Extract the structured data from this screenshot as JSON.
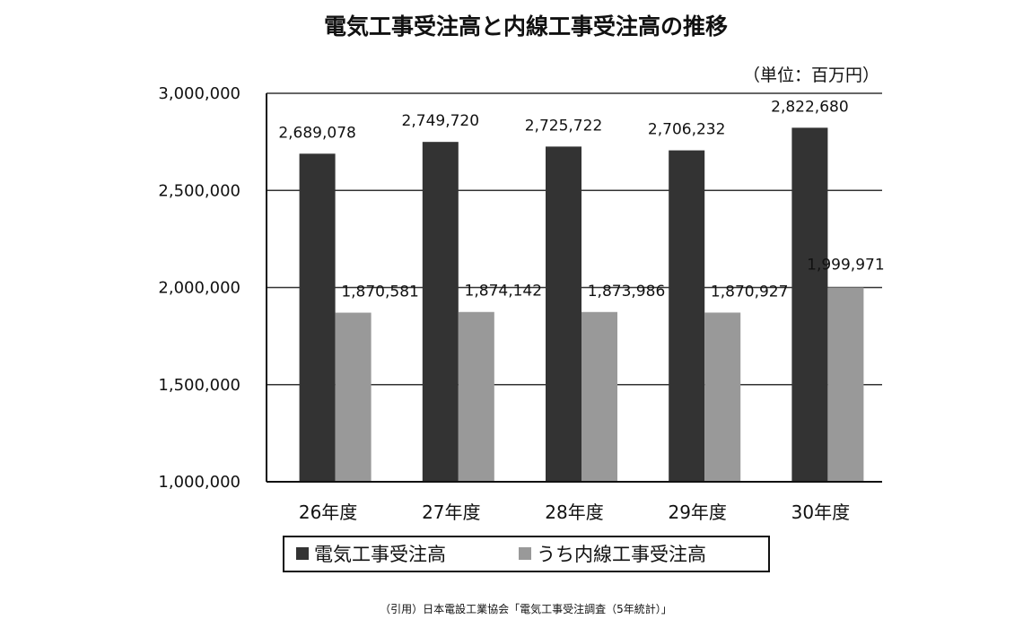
{
  "chart_data": {
    "type": "bar",
    "title": "電気工事受注高と内線工事受注高の推移",
    "unit_label": "（単位：百万円）",
    "categories": [
      "26年度",
      "27年度",
      "28年度",
      "29年度",
      "30年度"
    ],
    "series": [
      {
        "name": "電気工事受注高",
        "color": "#333333",
        "values": [
          2689078,
          2749720,
          2725722,
          2706232,
          2822680
        ],
        "labels": [
          "2,689,078",
          "2,749,720",
          "2,725,722",
          "2,706,232",
          "2,822,680"
        ]
      },
      {
        "name": "うち内線工事受注高",
        "color": "#999999",
        "values": [
          1870581,
          1874142,
          1873986,
          1870927,
          1999971
        ],
        "labels": [
          "1,870,581",
          "1,874,142",
          "1,873,986",
          "1,870,927",
          "1,999,971"
        ]
      }
    ],
    "ylim": [
      1000000,
      3000000
    ],
    "yticks": [
      1000000,
      1500000,
      2000000,
      2500000,
      3000000
    ],
    "ytick_labels": [
      "1,000,000",
      "1,500,000",
      "2,000,000",
      "2,500,000",
      "3,000,000"
    ],
    "grid": true,
    "legend_position": "bottom"
  },
  "source_note": "（引用）日本電設工業協会「電気工事受注調査（5年統計）」"
}
